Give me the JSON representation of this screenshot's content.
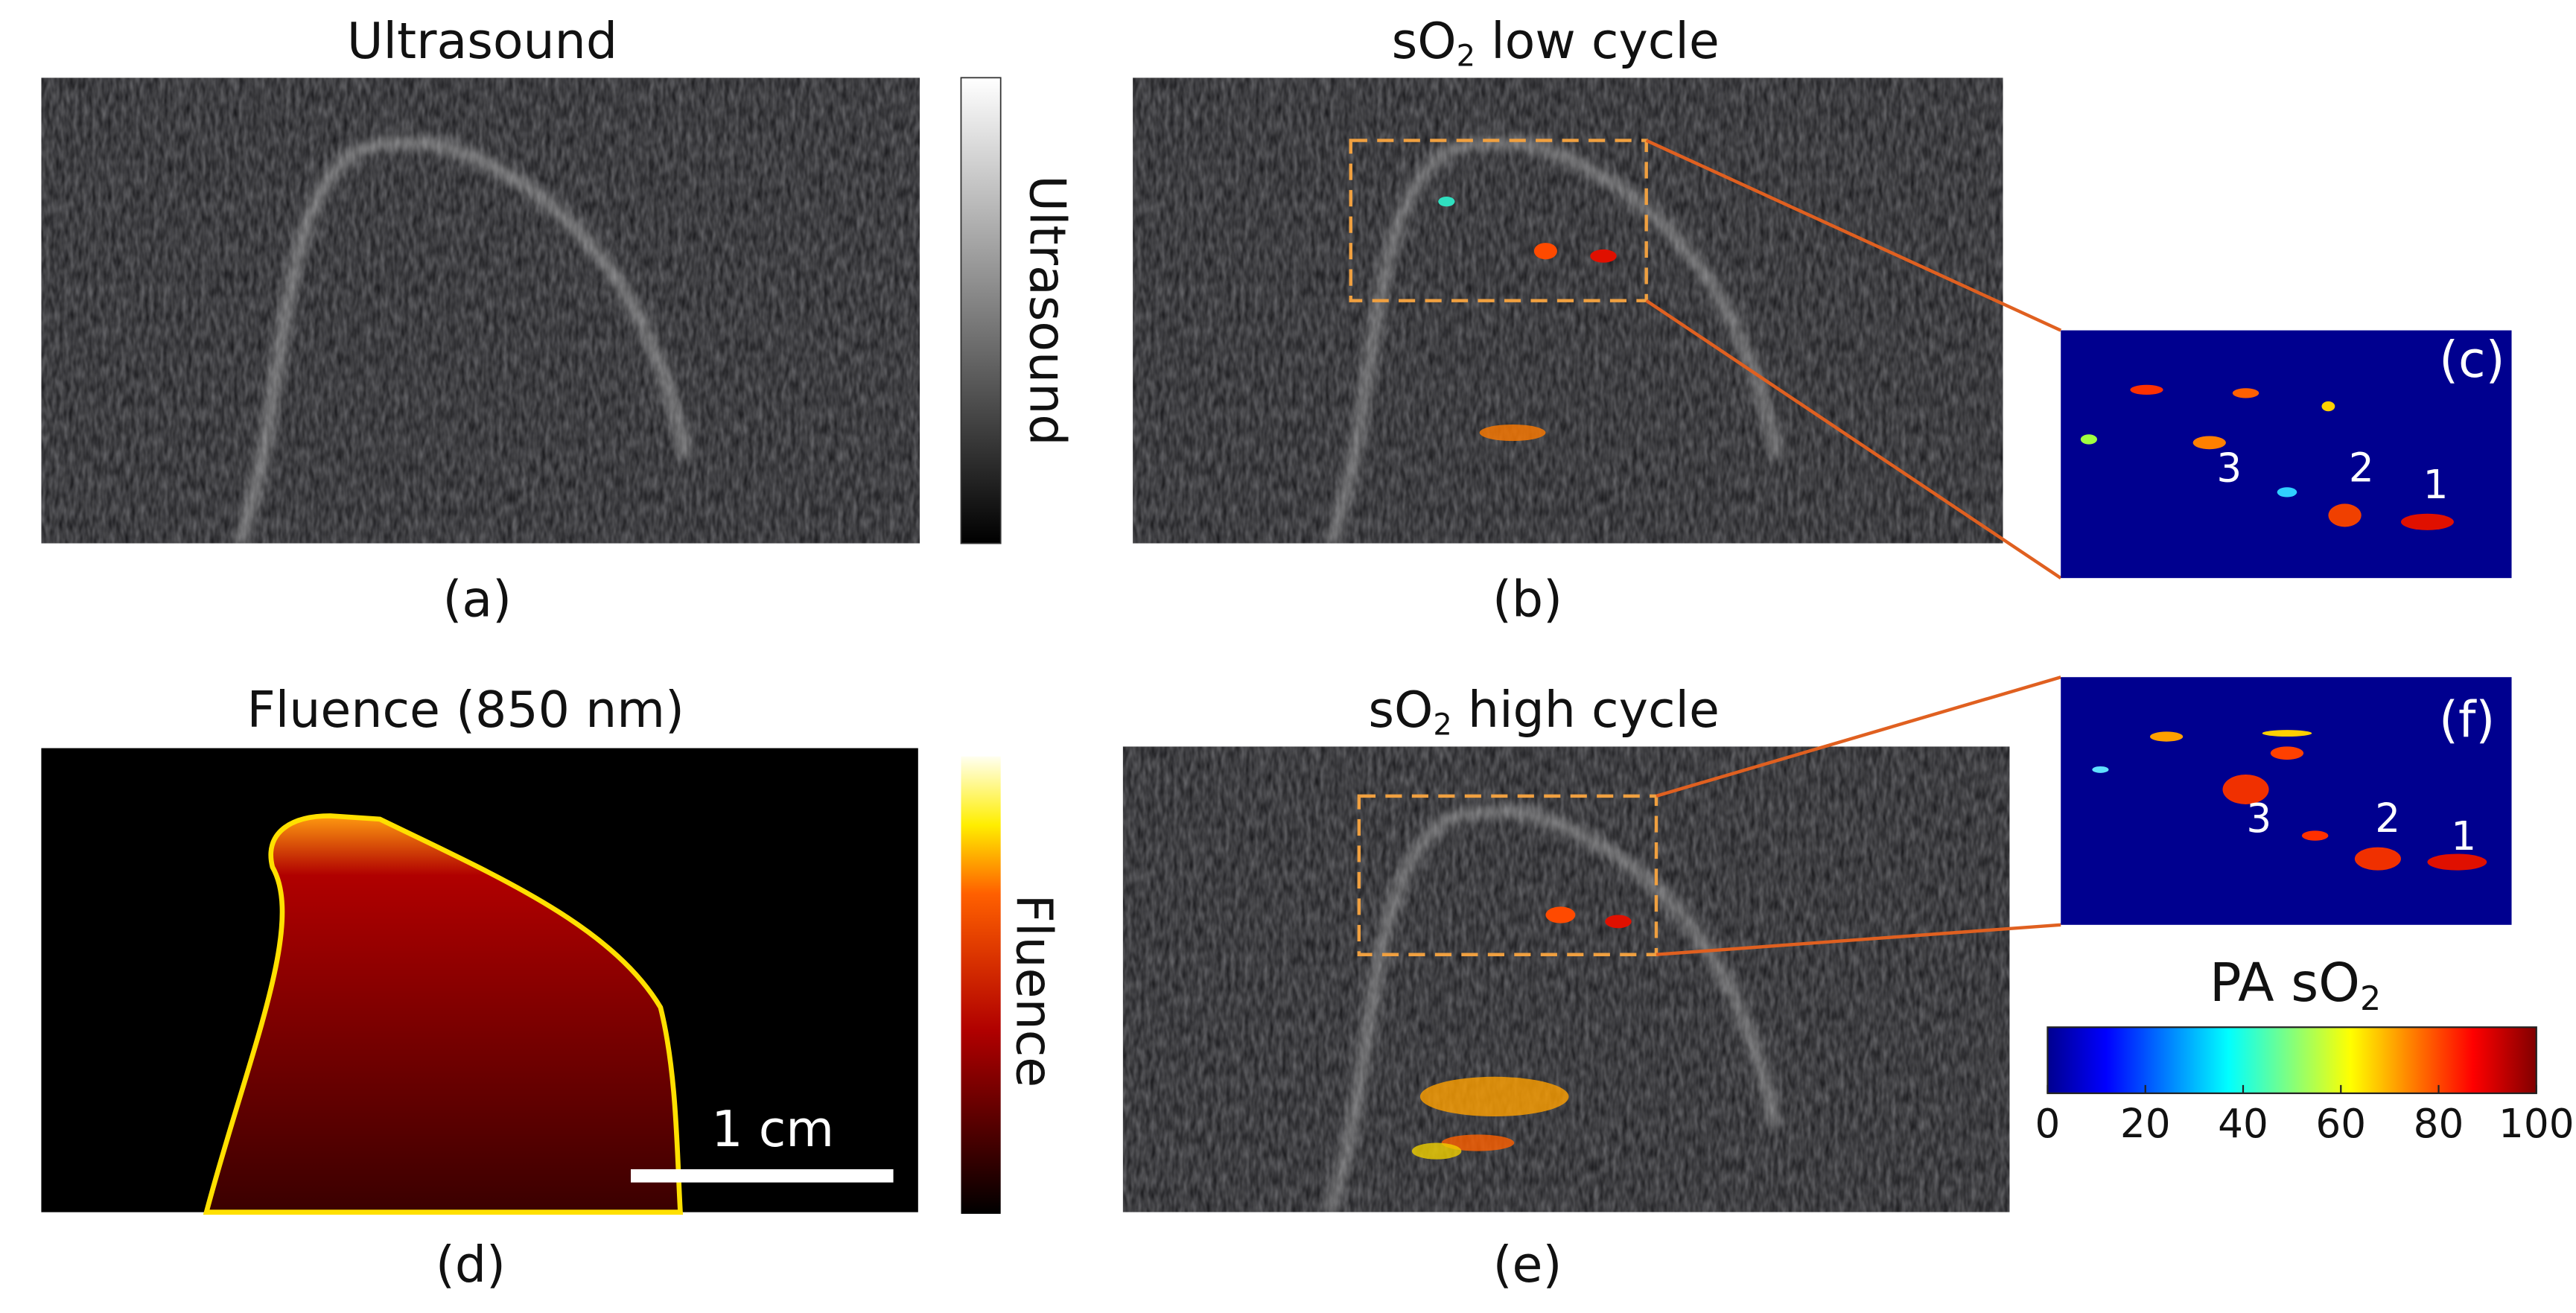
{
  "panels": [
    {
      "title": "Ultrasound",
      "label": "(a)",
      "colorbar_label": "Ultrasound"
    },
    {
      "title": {
        "main": "sO",
        "sub": "2",
        "rest": " low cycle"
      },
      "label": "(b)"
    },
    {
      "label": "(c)",
      "markers": [
        "3",
        "2",
        "1"
      ]
    },
    {
      "title": "Fluence (850 nm)",
      "label": "(d)",
      "scale_bar": "1 cm",
      "colorbar_label": "Fluence"
    },
    {
      "title": {
        "main": "sO",
        "sub": "2",
        "rest": " high cycle"
      },
      "label": "(e)"
    },
    {
      "label": "(f)",
      "markers": [
        "3",
        "2",
        "1"
      ]
    }
  ],
  "colorbar": {
    "title": {
      "main": "PA sO",
      "sub": "2"
    },
    "ticks": [
      0,
      20,
      40,
      60,
      80,
      100
    ]
  }
}
